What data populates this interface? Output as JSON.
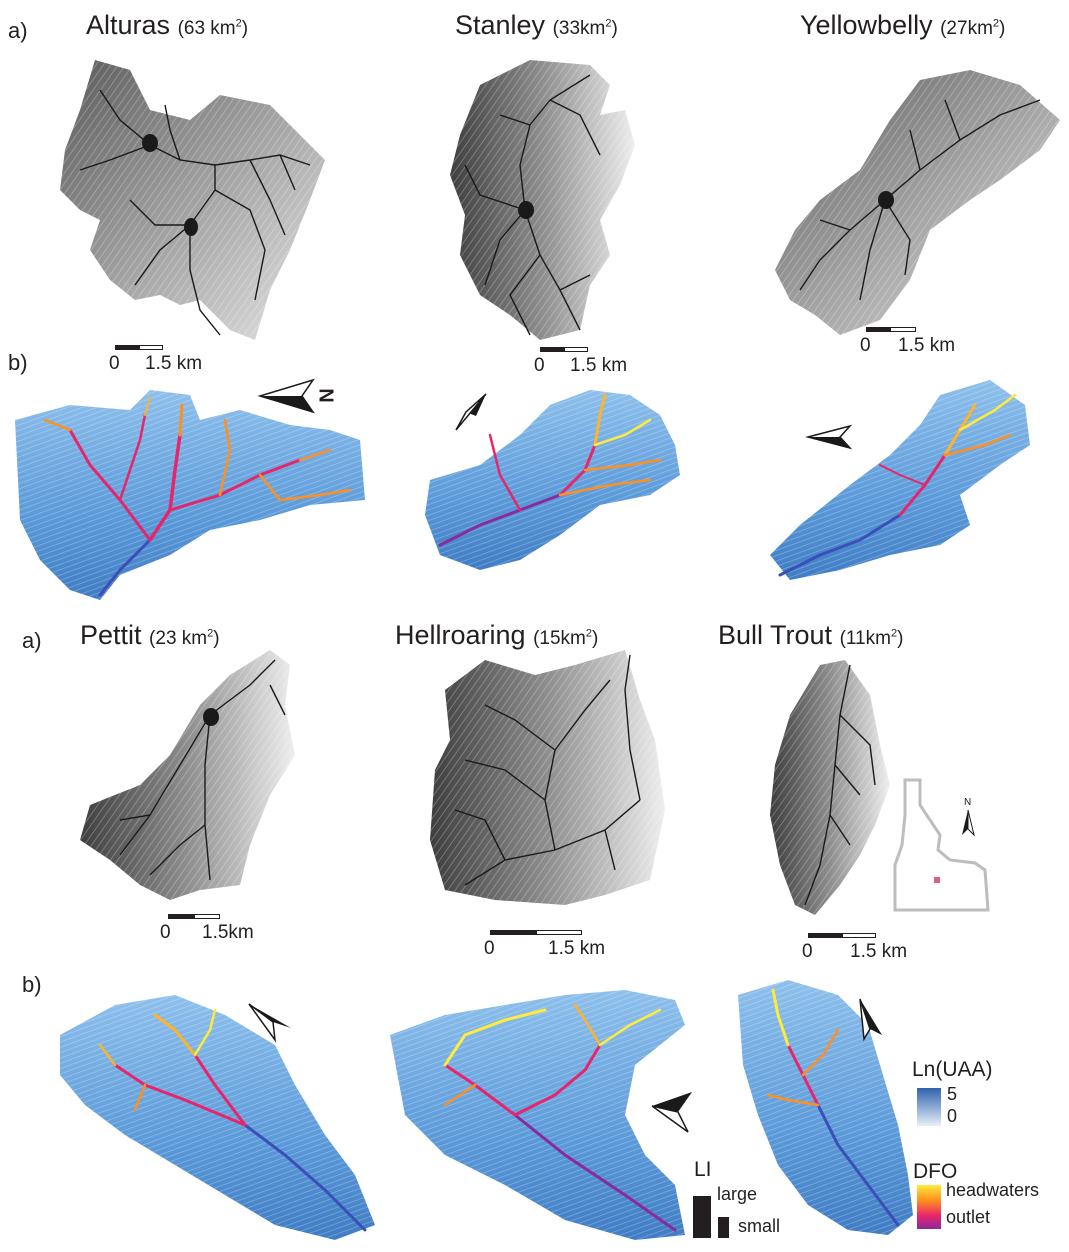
{
  "panel_labels": {
    "top_a": "a)",
    "top_b": "b)",
    "bottom_a": "a)",
    "bottom_b": "b)"
  },
  "watersheds": [
    {
      "name": "Alturas",
      "area_num": "(63 km",
      "area_exp": "2",
      "area_close": ")"
    },
    {
      "name": "Stanley",
      "area_num": "(33km",
      "area_exp": "2",
      "area_close": ")"
    },
    {
      "name": "Yellowbelly",
      "area_num": "(27km",
      "area_exp": "2",
      "area_close": ")"
    },
    {
      "name": "Pettit",
      "area_num": "(23 km",
      "area_exp": "2",
      "area_close": ")"
    },
    {
      "name": "Hellroaring",
      "area_num": "(15km",
      "area_exp": "2",
      "area_close": ")"
    },
    {
      "name": "Bull Trout",
      "area_num": "(11km",
      "area_exp": "2",
      "area_close": ")"
    }
  ],
  "scalebars": [
    {
      "zero": "0",
      "value": "1.5 km"
    },
    {
      "zero": "0",
      "value": "1.5 km"
    },
    {
      "zero": "0",
      "value": "1.5 km"
    },
    {
      "zero": "0",
      "value": "1.5km"
    },
    {
      "zero": "0",
      "value": "1.5 km"
    },
    {
      "zero": "0",
      "value": "1.5 km"
    }
  ],
  "north_label": "N",
  "legend": {
    "uaa_title": "Ln(UAA)",
    "uaa_max": "5",
    "uaa_min": "0",
    "uaa_colors": [
      "#2f63ad",
      "#e8eff8"
    ],
    "li_title": "LI",
    "li_large": "large",
    "li_small": "small",
    "dfo_title": "DFO",
    "dfo_high": "headwaters",
    "dfo_low": "outlet",
    "dfo_colors": [
      "#ffeb3b",
      "#ff8f1f",
      "#e8256b",
      "#8a2a9c"
    ]
  },
  "colors": {
    "terrain_blue": "#5b9ad9",
    "terrain_blue_light": "#9cc6ec",
    "stream_black": "#1a1a1a",
    "hillshade_dark": "#4a4a4a",
    "hillshade_light": "#d8d8d8"
  }
}
